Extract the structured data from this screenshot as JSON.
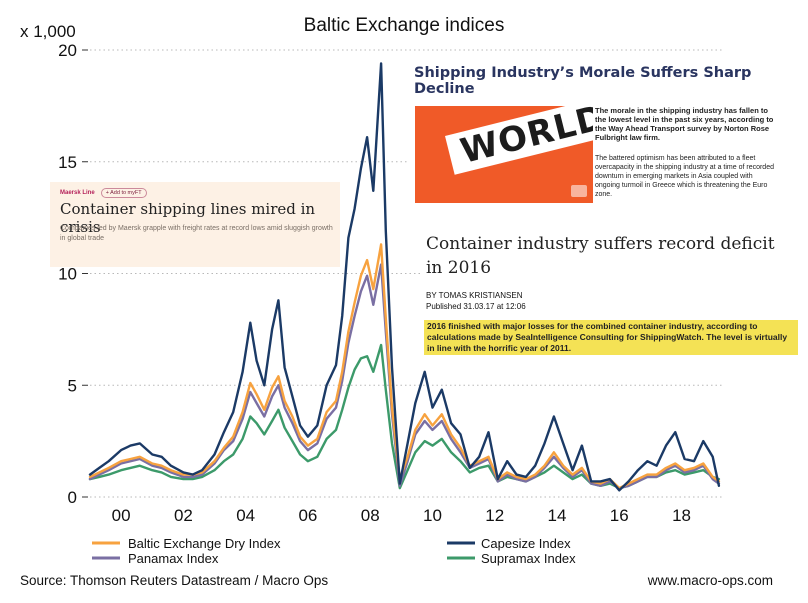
{
  "chart_data": {
    "type": "line",
    "title": "Baltic Exchange indices",
    "ylabel": "x 1,000",
    "xlabel": "",
    "xlim": [
      1999,
      2019.3
    ],
    "ylim": [
      0,
      20
    ],
    "grid": "horizontal dotted",
    "yticks": [
      "0",
      "5",
      "10",
      "15",
      "20"
    ],
    "xticks": [
      "00",
      "02",
      "04",
      "06",
      "08",
      "10",
      "12",
      "14",
      "16",
      "18"
    ],
    "legend_position": "bottom",
    "x": [
      1999.0,
      1999.3,
      1999.6,
      2000.0,
      2000.3,
      2000.6,
      2001.0,
      2001.3,
      2001.6,
      2002.0,
      2002.3,
      2002.6,
      2003.0,
      2003.3,
      2003.6,
      2003.9,
      2004.15,
      2004.35,
      2004.6,
      2004.85,
      2005.05,
      2005.25,
      2005.5,
      2005.75,
      2006.0,
      2006.3,
      2006.6,
      2006.9,
      2007.1,
      2007.3,
      2007.5,
      2007.7,
      2007.9,
      2008.1,
      2008.35,
      2008.5,
      2008.7,
      2008.95,
      2009.2,
      2009.45,
      2009.75,
      2010.0,
      2010.3,
      2010.6,
      2010.9,
      2011.2,
      2011.5,
      2011.8,
      2012.1,
      2012.4,
      2012.7,
      2013.0,
      2013.3,
      2013.6,
      2013.9,
      2014.2,
      2014.5,
      2014.8,
      2015.1,
      2015.4,
      2015.7,
      2016.0,
      2016.3,
      2016.6,
      2016.9,
      2017.2,
      2017.5,
      2017.8,
      2018.1,
      2018.4,
      2018.7,
      2019.0,
      2019.2
    ],
    "series": [
      {
        "name": "Baltic Exchange Dry Index",
        "color": "#f7a23f",
        "values": [
          0.9,
          1.1,
          1.3,
          1.6,
          1.7,
          1.8,
          1.5,
          1.4,
          1.2,
          1.0,
          1.0,
          1.1,
          1.6,
          2.2,
          2.7,
          3.8,
          5.1,
          4.6,
          3.9,
          4.9,
          5.4,
          4.3,
          3.6,
          2.7,
          2.3,
          2.6,
          3.8,
          4.3,
          5.6,
          7.4,
          8.7,
          9.9,
          10.6,
          9.3,
          11.3,
          8.0,
          4.0,
          0.8,
          1.8,
          3.0,
          3.7,
          3.2,
          3.7,
          2.8,
          2.2,
          1.4,
          1.6,
          1.8,
          0.8,
          1.1,
          0.9,
          0.8,
          1.0,
          1.4,
          2.0,
          1.4,
          1.0,
          1.3,
          0.7,
          0.6,
          0.8,
          0.4,
          0.6,
          0.8,
          1.0,
          1.0,
          1.3,
          1.5,
          1.2,
          1.3,
          1.5,
          0.9,
          0.7
        ]
      },
      {
        "name": "Capesize Index",
        "color": "#1b3a66",
        "values": [
          1.0,
          1.3,
          1.6,
          2.1,
          2.3,
          2.4,
          1.9,
          1.8,
          1.4,
          1.1,
          1.0,
          1.2,
          1.9,
          2.9,
          3.8,
          5.6,
          7.8,
          6.1,
          5.0,
          7.5,
          8.8,
          5.8,
          4.5,
          3.2,
          2.7,
          3.2,
          5.0,
          5.9,
          8.1,
          11.6,
          12.9,
          14.7,
          16.1,
          13.7,
          19.4,
          11.9,
          5.8,
          0.6,
          2.4,
          4.2,
          5.6,
          4.0,
          4.8,
          3.3,
          2.8,
          1.3,
          1.8,
          2.9,
          0.8,
          1.6,
          1.0,
          0.9,
          1.4,
          2.4,
          3.6,
          2.4,
          1.2,
          2.3,
          0.7,
          0.7,
          0.8,
          0.3,
          0.7,
          1.2,
          1.6,
          1.4,
          2.3,
          2.9,
          1.7,
          1.6,
          2.5,
          1.8,
          0.5
        ]
      },
      {
        "name": "Panamax Index",
        "color": "#7a6fa3",
        "values": [
          0.8,
          1.0,
          1.2,
          1.5,
          1.6,
          1.7,
          1.4,
          1.3,
          1.1,
          0.9,
          0.9,
          1.0,
          1.5,
          2.1,
          2.5,
          3.5,
          4.7,
          4.2,
          3.6,
          4.5,
          5.0,
          4.0,
          3.3,
          2.5,
          2.1,
          2.4,
          3.5,
          4.0,
          5.2,
          6.9,
          8.1,
          9.2,
          9.9,
          8.6,
          10.4,
          7.4,
          3.7,
          0.5,
          1.6,
          2.8,
          3.4,
          3.0,
          3.4,
          2.6,
          2.0,
          1.3,
          1.5,
          1.7,
          0.7,
          1.0,
          0.8,
          0.7,
          0.9,
          1.3,
          1.8,
          1.3,
          0.9,
          1.2,
          0.6,
          0.5,
          0.7,
          0.4,
          0.5,
          0.7,
          0.9,
          0.9,
          1.2,
          1.4,
          1.1,
          1.2,
          1.4,
          0.8,
          0.6
        ]
      },
      {
        "name": "Supramax Index",
        "color": "#3c9a6a",
        "values": [
          0.8,
          0.9,
          1.0,
          1.2,
          1.3,
          1.4,
          1.2,
          1.1,
          0.9,
          0.8,
          0.8,
          0.9,
          1.2,
          1.6,
          1.9,
          2.6,
          3.6,
          3.3,
          2.8,
          3.4,
          3.9,
          3.1,
          2.5,
          1.9,
          1.6,
          1.8,
          2.6,
          3.0,
          3.9,
          4.9,
          5.7,
          6.2,
          6.3,
          5.6,
          6.8,
          4.8,
          2.4,
          0.4,
          1.2,
          2.0,
          2.5,
          2.3,
          2.6,
          2.0,
          1.6,
          1.1,
          1.3,
          1.4,
          0.7,
          0.9,
          0.8,
          0.7,
          0.9,
          1.1,
          1.4,
          1.1,
          0.8,
          1.0,
          0.6,
          0.5,
          0.6,
          0.4,
          0.5,
          0.7,
          0.9,
          0.9,
          1.1,
          1.2,
          1.0,
          1.1,
          1.2,
          0.9,
          0.8
        ]
      }
    ]
  },
  "source_note": "Source: Thomson Reuters Datastream / Macro Ops",
  "website": "www.macro-ops.com",
  "insets": {
    "ft": {
      "section": "Maersk Line",
      "add_button": "+ Add to myFT",
      "headline": "Container shipping lines mired in crisis",
      "summary": "Companies led by Maersk grapple with freight rates at record lows amid sluggish growth in global trade"
    },
    "shipping": {
      "headline": "Shipping Industry’s Morale Suffers Sharp Decline",
      "image_text": "WORLD",
      "para1": "The morale in the shipping industry has fallen to the lowest level in the past six years, according to the Way Ahead Transport survey by Norton Rose Fulbright law firm.",
      "para2": "The battered optimism has been attributed to a fleet overcapacity in the shipping industry at a time of recorded downturn in emerging markets in Asia coupled with ongoing turmoil in Greece which is threatening the Euro zone."
    },
    "shippingwatch": {
      "headline": "Container industry suffers record deficit in 2016",
      "byline": "BY TOMAS KRISTIANSEN",
      "published": "Published  31.03.17 at 12:06",
      "lead": "2016 finished with major losses for the combined container industry, according to calculations made by SeaIntelligence Consulting for ShippingWatch. The level is virtually in line with the horrific year of 2011."
    }
  }
}
